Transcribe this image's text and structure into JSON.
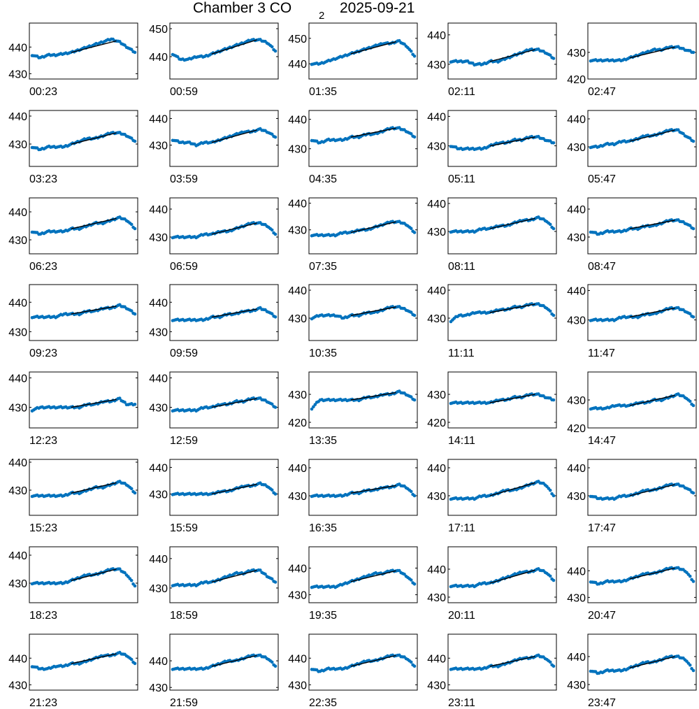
{
  "title": {
    "main": "Chamber 3 CO",
    "subscript": "2",
    "date": "2025-09-21"
  },
  "colors": {
    "points": "#0072BD",
    "fit_line": "#000000",
    "axes": "#000000"
  },
  "chart_data": [
    {
      "type": "scatter",
      "xlabel": "00:23",
      "ylim": [
        428,
        449
      ],
      "yticks": [
        430,
        440
      ],
      "y": [
        437,
        436,
        437,
        437,
        437.5,
        438,
        439,
        440,
        441,
        442,
        443,
        442,
        440,
        438
      ]
    },
    {
      "type": "scatter",
      "xlabel": "00:59",
      "ylim": [
        432,
        452
      ],
      "yticks": [
        440,
        450
      ],
      "y": [
        441,
        439,
        439,
        440,
        440,
        441,
        442,
        443,
        444,
        445,
        446,
        446,
        445,
        442
      ]
    },
    {
      "type": "scatter",
      "xlabel": "01:35",
      "ylim": [
        434,
        456
      ],
      "yticks": [
        440,
        450
      ],
      "y": [
        440,
        440,
        441,
        442,
        443,
        444,
        445,
        446,
        447,
        448,
        448,
        449,
        447,
        443
      ]
    },
    {
      "type": "scatter",
      "xlabel": "02:11",
      "ylim": [
        425,
        444
      ],
      "yticks": [
        430,
        440
      ],
      "y": [
        431,
        431,
        431,
        430,
        430,
        431,
        431,
        432,
        433,
        434,
        435,
        435,
        434,
        432
      ]
    },
    {
      "type": "scatter",
      "xlabel": "02:47",
      "ylim": [
        420,
        441
      ],
      "yticks": [
        420,
        430
      ],
      "y": [
        427,
        427,
        427,
        427,
        427,
        428,
        429,
        430,
        431,
        431,
        432,
        432,
        431,
        430
      ]
    },
    {
      "type": "scatter",
      "xlabel": "03:23",
      "ylim": [
        422,
        442
      ],
      "yticks": [
        430,
        440
      ],
      "y": [
        429,
        428,
        429,
        429,
        429,
        430,
        431,
        432,
        432,
        433,
        434,
        434,
        433,
        431
      ]
    },
    {
      "type": "scatter",
      "xlabel": "03:59",
      "ylim": [
        422,
        443
      ],
      "yticks": [
        430,
        440
      ],
      "y": [
        432,
        431,
        431,
        430,
        431,
        431,
        432,
        433,
        434,
        435,
        435,
        436,
        435,
        433
      ]
    },
    {
      "type": "scatter",
      "xlabel": "04:35",
      "ylim": [
        424,
        443
      ],
      "yticks": [
        430,
        440
      ],
      "y": [
        433,
        432,
        433,
        433,
        433,
        434,
        434,
        435,
        435,
        436,
        437,
        437,
        436,
        434
      ]
    },
    {
      "type": "scatter",
      "xlabel": "05:11",
      "ylim": [
        423,
        442
      ],
      "yticks": [
        430,
        440
      ],
      "y": [
        430,
        429,
        429,
        429,
        429,
        430,
        431,
        431,
        432,
        432,
        433,
        433,
        432,
        431
      ]
    },
    {
      "type": "scatter",
      "xlabel": "05:47",
      "ylim": [
        423,
        443
      ],
      "yticks": [
        430,
        440
      ],
      "y": [
        430,
        430,
        431,
        431,
        432,
        432,
        433,
        434,
        434,
        435,
        436,
        436,
        434,
        432
      ]
    },
    {
      "type": "scatter",
      "xlabel": "06:23",
      "ylim": [
        425,
        445
      ],
      "yticks": [
        430,
        440
      ],
      "y": [
        433,
        432,
        433,
        433,
        433,
        434,
        434,
        435,
        436,
        436,
        437,
        438,
        437,
        434
      ]
    },
    {
      "type": "scatter",
      "xlabel": "06:59",
      "ylim": [
        424,
        444
      ],
      "yticks": [
        430,
        440
      ],
      "y": [
        430,
        430,
        430,
        430,
        431,
        431,
        432,
        432,
        433,
        434,
        435,
        435,
        434,
        431
      ]
    },
    {
      "type": "scatter",
      "xlabel": "07:35",
      "ylim": [
        421,
        442
      ],
      "yticks": [
        430,
        440
      ],
      "y": [
        428,
        428,
        428,
        428,
        429,
        429,
        430,
        430,
        431,
        432,
        433,
        433,
        432,
        429
      ]
    },
    {
      "type": "scatter",
      "xlabel": "08:11",
      "ylim": [
        422,
        442
      ],
      "yticks": [
        430,
        440
      ],
      "y": [
        430,
        430,
        430,
        430,
        431,
        431,
        432,
        432,
        433,
        434,
        434,
        435,
        434,
        431
      ]
    },
    {
      "type": "scatter",
      "xlabel": "08:47",
      "ylim": [
        424,
        444
      ],
      "yticks": [
        430,
        440
      ],
      "y": [
        432,
        431,
        432,
        432,
        432,
        433,
        433,
        434,
        434,
        435,
        436,
        436,
        435,
        433
      ]
    },
    {
      "type": "scatter",
      "xlabel": "09:23",
      "ylim": [
        427,
        446
      ],
      "yticks": [
        430,
        440
      ],
      "y": [
        435,
        435,
        435,
        435,
        436,
        436,
        436,
        437,
        437,
        438,
        438,
        439,
        438,
        436
      ]
    },
    {
      "type": "scatter",
      "xlabel": "09:59",
      "ylim": [
        427,
        446
      ],
      "yticks": [
        430,
        440
      ],
      "y": [
        434,
        434,
        434,
        434,
        434,
        435,
        435,
        436,
        436,
        437,
        437,
        438,
        437,
        435
      ]
    },
    {
      "type": "scatter",
      "xlabel": "10:35",
      "ylim": [
        422,
        442
      ],
      "yticks": [
        430,
        440
      ],
      "y": [
        430,
        431,
        431,
        431,
        430,
        431,
        431,
        432,
        432,
        433,
        434,
        434,
        433,
        431
      ]
    },
    {
      "type": "scatter",
      "xlabel": "11:11",
      "ylim": [
        422,
        442
      ],
      "yticks": [
        430,
        440
      ],
      "y": [
        429,
        431,
        431,
        432,
        432,
        432,
        433,
        433,
        434,
        434,
        435,
        435,
        434,
        431
      ]
    },
    {
      "type": "scatter",
      "xlabel": "11:47",
      "ylim": [
        423,
        442
      ],
      "yticks": [
        430,
        440
      ],
      "y": [
        430,
        430,
        430,
        430,
        431,
        431,
        431,
        432,
        432,
        433,
        434,
        434,
        433,
        431
      ]
    },
    {
      "type": "scatter",
      "xlabel": "12:23",
      "ylim": [
        423,
        442
      ],
      "yticks": [
        430,
        440
      ],
      "y": [
        429,
        430,
        430,
        430,
        430,
        430,
        430,
        431,
        431,
        432,
        432,
        433,
        431,
        431
      ]
    },
    {
      "type": "scatter",
      "xlabel": "12:59",
      "ylim": [
        423,
        442
      ],
      "yticks": [
        430,
        440
      ],
      "y": [
        429,
        429,
        429,
        429,
        430,
        430,
        431,
        431,
        432,
        432,
        433,
        433,
        432,
        430
      ]
    },
    {
      "type": "scatter",
      "xlabel": "13:35",
      "ylim": [
        418,
        438
      ],
      "yticks": [
        420,
        430
      ],
      "y": [
        425,
        428,
        428,
        428,
        428,
        428,
        428,
        429,
        429,
        430,
        430,
        431,
        430,
        428
      ]
    },
    {
      "type": "scatter",
      "xlabel": "14:11",
      "ylim": [
        418,
        438
      ],
      "yticks": [
        420,
        430
      ],
      "y": [
        427,
        427,
        427,
        427,
        427,
        427,
        428,
        428,
        429,
        429,
        430,
        430,
        429,
        428
      ]
    },
    {
      "type": "scatter",
      "xlabel": "14:47",
      "ylim": [
        420,
        440
      ],
      "yticks": [
        420,
        430
      ],
      "y": [
        427,
        427,
        427,
        428,
        428,
        428,
        429,
        429,
        430,
        430,
        431,
        432,
        431,
        428
      ]
    },
    {
      "type": "scatter",
      "xlabel": "15:23",
      "ylim": [
        421,
        441
      ],
      "yticks": [
        430,
        440
      ],
      "y": [
        428,
        428,
        428,
        428,
        428,
        429,
        429,
        430,
        431,
        431,
        432,
        433,
        432,
        429
      ]
    },
    {
      "type": "scatter",
      "xlabel": "15:59",
      "ylim": [
        422,
        443
      ],
      "yticks": [
        430,
        440
      ],
      "y": [
        430,
        430,
        430,
        430,
        430,
        430,
        431,
        431,
        432,
        433,
        433,
        434,
        433,
        430
      ]
    },
    {
      "type": "scatter",
      "xlabel": "16:35",
      "ylim": [
        423,
        443
      ],
      "yticks": [
        430,
        440
      ],
      "y": [
        430,
        430,
        430,
        430,
        430,
        431,
        431,
        432,
        432,
        433,
        433,
        434,
        433,
        430
      ]
    },
    {
      "type": "scatter",
      "xlabel": "17:11",
      "ylim": [
        423,
        443
      ],
      "yticks": [
        430,
        440
      ],
      "y": [
        429,
        429,
        429,
        429,
        430,
        430,
        431,
        432,
        432,
        433,
        434,
        435,
        434,
        430
      ]
    },
    {
      "type": "scatter",
      "xlabel": "17:47",
      "ylim": [
        423,
        443
      ],
      "yticks": [
        430,
        440
      ],
      "y": [
        430,
        429,
        429,
        429,
        430,
        430,
        431,
        432,
        432,
        433,
        434,
        434,
        433,
        431
      ]
    },
    {
      "type": "scatter",
      "xlabel": "18:23",
      "ylim": [
        423,
        443
      ],
      "yticks": [
        430,
        440
      ],
      "y": [
        430,
        430,
        430,
        430,
        430,
        431,
        432,
        433,
        433,
        434,
        435,
        435,
        433,
        429
      ]
    },
    {
      "type": "scatter",
      "xlabel": "18:59",
      "ylim": [
        425,
        444
      ],
      "yticks": [
        430,
        440
      ],
      "y": [
        431,
        431,
        431,
        431,
        432,
        432,
        433,
        434,
        435,
        435,
        436,
        436,
        434,
        432
      ]
    },
    {
      "type": "scatter",
      "xlabel": "19:35",
      "ylim": [
        427,
        448
      ],
      "yticks": [
        430,
        440
      ],
      "y": [
        433,
        433,
        433,
        433,
        434,
        435,
        436,
        437,
        438,
        438,
        439,
        439,
        437,
        434
      ]
    },
    {
      "type": "scatter",
      "xlabel": "20:11",
      "ylim": [
        428,
        448
      ],
      "yticks": [
        430,
        440
      ],
      "y": [
        434,
        434,
        434,
        434,
        435,
        435,
        436,
        437,
        438,
        439,
        439,
        440,
        439,
        436
      ]
    },
    {
      "type": "scatter",
      "xlabel": "20:47",
      "ylim": [
        428,
        449
      ],
      "yticks": [
        430,
        440
      ],
      "y": [
        436,
        435,
        436,
        436,
        436,
        437,
        438,
        439,
        439,
        440,
        441,
        441,
        440,
        436
      ]
    },
    {
      "type": "scatter",
      "xlabel": "21:23",
      "ylim": [
        428,
        449
      ],
      "yticks": [
        430,
        440
      ],
      "y": [
        437,
        436,
        436,
        437,
        437,
        438,
        438,
        439,
        440,
        441,
        441,
        442,
        441,
        438
      ]
    },
    {
      "type": "scatter",
      "xlabel": "21:59",
      "ylim": [
        429,
        450
      ],
      "yticks": [
        430,
        440
      ],
      "y": [
        437,
        437,
        437,
        437,
        437,
        438,
        439,
        440,
        440,
        441,
        442,
        442,
        441,
        438
      ]
    },
    {
      "type": "scatter",
      "xlabel": "22:35",
      "ylim": [
        428,
        449
      ],
      "yticks": [
        430,
        440
      ],
      "y": [
        436,
        435,
        436,
        436,
        436,
        437,
        438,
        439,
        439,
        440,
        441,
        441,
        440,
        437
      ]
    },
    {
      "type": "scatter",
      "xlabel": "23:11",
      "ylim": [
        428,
        449
      ],
      "yticks": [
        430,
        440
      ],
      "y": [
        436,
        436,
        436,
        436,
        436,
        437,
        437,
        438,
        439,
        440,
        440,
        441,
        440,
        437
      ]
    },
    {
      "type": "scatter",
      "xlabel": "23:47",
      "ylim": [
        428,
        448
      ],
      "yticks": [
        430,
        440
      ],
      "y": [
        435,
        434,
        435,
        435,
        435,
        436,
        437,
        438,
        438,
        439,
        440,
        440,
        439,
        435
      ]
    }
  ]
}
